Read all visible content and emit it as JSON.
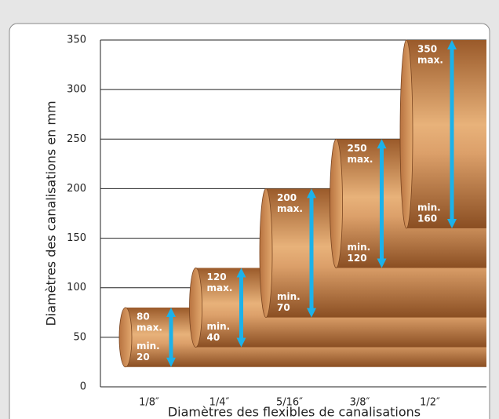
{
  "chart_data": {
    "type": "pipe-range",
    "y_label": "Diamètres des canalisations en mm",
    "x_label": "Diamètres des flexibles de canalisations",
    "categories": [
      "1/8″",
      "1/4″",
      "5/16″",
      "3/8″",
      "1/2″"
    ],
    "series": [
      {
        "name": "max.",
        "values": [
          80,
          120,
          200,
          250,
          350
        ]
      },
      {
        "name": "min.",
        "values": [
          20,
          40,
          70,
          120,
          160
        ]
      }
    ],
    "arrow_color": "#1bb2ea",
    "ylim": [
      0,
      350
    ],
    "yticks": [
      0,
      50,
      100,
      150,
      200,
      250,
      300,
      350
    ],
    "grid": true
  }
}
